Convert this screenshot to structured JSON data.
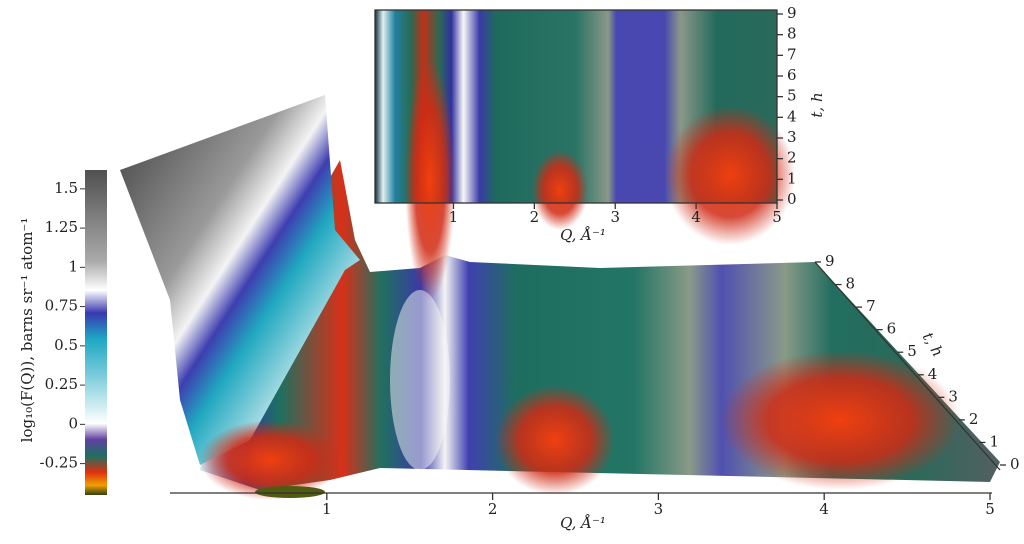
{
  "chart_data": [
    {
      "type": "colorbar",
      "label": "log₁₀(F(Q)), barns sr⁻¹ atom⁻¹",
      "ylim": [
        -0.45,
        1.62
      ],
      "yticks": [
        1.5,
        1.25,
        1,
        0.75,
        0.5,
        0.25,
        0,
        -0.25
      ]
    },
    {
      "type": "surface",
      "xlabel": "Q, Å⁻¹",
      "zlabel": "t, h",
      "xlim": [
        0,
        5
      ],
      "xticks": [
        1,
        2,
        3,
        4,
        5
      ],
      "zlim": [
        0,
        9
      ],
      "zticks": [
        0,
        1,
        2,
        3,
        4,
        5,
        6,
        7,
        8,
        9
      ]
    },
    {
      "type": "heatmap",
      "xlabel": "Q, Å⁻¹",
      "ylabel": "t, h",
      "xlim": [
        0.03,
        5
      ],
      "xticks": [
        1,
        2,
        3,
        4,
        5
      ],
      "ylim": [
        0,
        9
      ],
      "yticks": [
        0,
        1,
        2,
        3,
        4,
        5,
        6,
        7,
        8,
        9
      ]
    }
  ]
}
